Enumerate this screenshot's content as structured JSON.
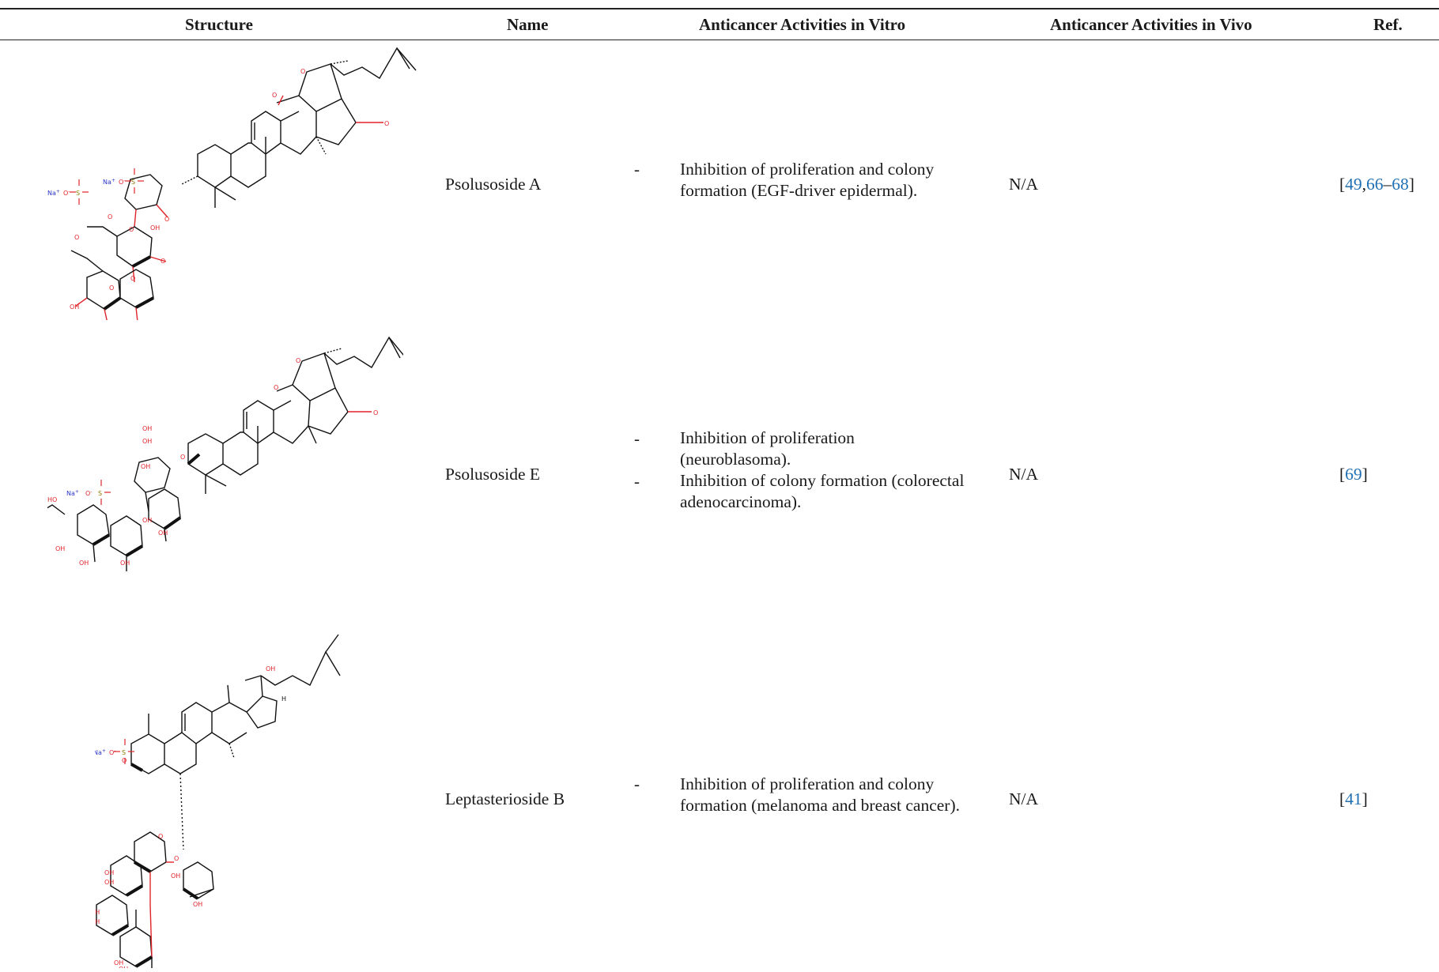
{
  "table": {
    "headers": {
      "structure": "Structure",
      "name": "Name",
      "in_vitro": "Anticancer Activities in Vitro",
      "in_vivo": "Anticancer Activities in Vivo",
      "ref": "Ref."
    },
    "rows": [
      {
        "name": "Psolusoside A",
        "in_vitro": [
          {
            "bullet": "-",
            "text": "Inhibition of proliferation and colony",
            "text2": "formation (EGF-driver epidermal)."
          }
        ],
        "in_vivo": "N/A",
        "ref": {
          "open": "[",
          "r1": "49",
          "sep1": ",",
          "r2": "66",
          "sep2": "–",
          "r3": "68",
          "close": "]"
        }
      },
      {
        "name": "Psolusoside E",
        "in_vitro": [
          {
            "bullet": "-",
            "text": "Inhibition of proliferation",
            "text2": "(neuroblasoma)."
          },
          {
            "bullet": "-",
            "text": "Inhibition of colony formation (colorectal",
            "text2": "adenocarcinoma)."
          }
        ],
        "in_vivo": "N/A",
        "ref": {
          "open": "[",
          "r1": "69",
          "close": "]"
        }
      },
      {
        "name": "Leptasterioside B",
        "in_vitro": [
          {
            "bullet": "-",
            "text": "Inhibition of proliferation and colony",
            "text2": "formation (melanoma and breast cancer)."
          }
        ],
        "in_vivo": "N/A",
        "ref": {
          "open": "[",
          "r1": "41",
          "close": "]"
        }
      }
    ]
  },
  "structure_labels": {
    "na": "Na",
    "plus": "+",
    "o": "O",
    "o_minus": "O",
    "s": "S",
    "oh": "OH",
    "ho": "HO",
    "h": "H"
  },
  "colors": {
    "bond": "#111111",
    "oxygen": "#e0242a",
    "sulfur": "#8a7a00",
    "sodium": "#2a35c8",
    "link": "#1f6fb2"
  }
}
